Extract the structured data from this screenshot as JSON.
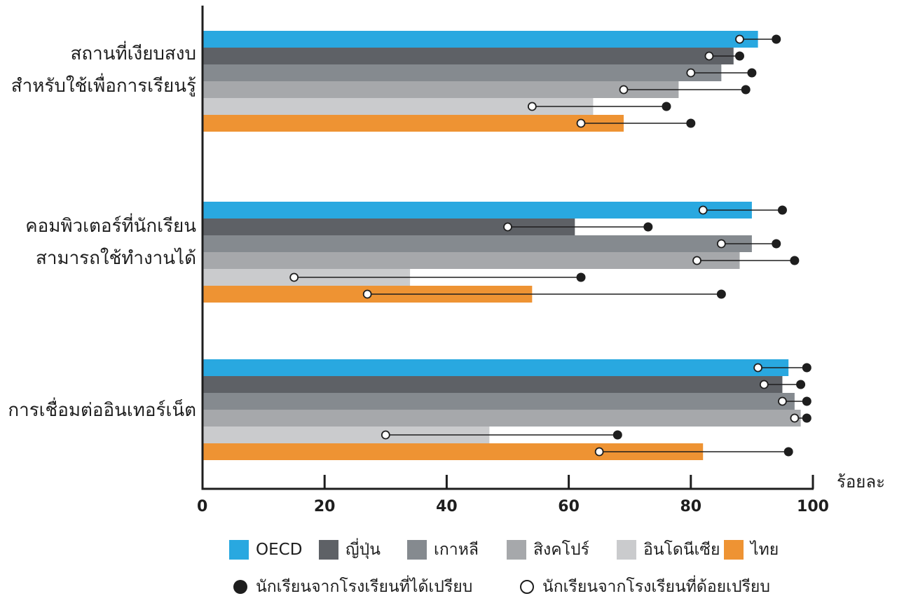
{
  "chart_data": {
    "type": "bar",
    "xunit": "ร้อยละ",
    "xlim": [
      0,
      100
    ],
    "xticks": [
      "0",
      "20",
      "40",
      "60",
      "80",
      "100"
    ],
    "categories": [
      [
        "สถานที่เงียบสงบ",
        "สำหรับใช้เพื่อการเรียนรู้"
      ],
      [
        "คอมพิวเตอร์ที่นักเรียน",
        "สามารถใช้ทำงานได้"
      ],
      [
        "การเชื่อมต่ออินเทอร์เน็ต"
      ]
    ],
    "series": [
      {
        "name": "OECD",
        "color": "#29a8e0",
        "values": [
          91,
          90,
          96
        ],
        "disadvantaged": [
          88,
          82,
          91
        ],
        "advantaged": [
          94,
          95,
          99
        ]
      },
      {
        "name": "ญี่ปุ่น",
        "color": "#5e6166",
        "values": [
          87,
          61,
          95
        ],
        "disadvantaged": [
          83,
          50,
          92
        ],
        "advantaged": [
          88,
          73,
          98
        ]
      },
      {
        "name": "เกาหลี",
        "color": "#858a8f",
        "values": [
          85,
          90,
          97
        ],
        "disadvantaged": [
          80,
          85,
          95
        ],
        "advantaged": [
          90,
          94,
          99
        ]
      },
      {
        "name": "สิงคโปร์",
        "color": "#a6a8ab",
        "values": [
          78,
          88,
          98
        ],
        "disadvantaged": [
          69,
          81,
          97
        ],
        "advantaged": [
          89,
          97,
          99
        ]
      },
      {
        "name": "อินโดนีเซีย",
        "color": "#cacbcd",
        "values": [
          64,
          34,
          47
        ],
        "disadvantaged": [
          54,
          15,
          30
        ],
        "advantaged": [
          76,
          62,
          68
        ]
      },
      {
        "name": "ไทย",
        "color": "#ee9333",
        "values": [
          69,
          54,
          82
        ],
        "disadvantaged": [
          62,
          27,
          65
        ],
        "advantaged": [
          80,
          85,
          96
        ]
      }
    ],
    "markers": {
      "advantaged_label": "นักเรียนจากโรงเรียนที่ได้เปรียบ",
      "disadvantaged_label": "นักเรียนจากโรงเรียนที่ด้อยเปรียบ"
    },
    "grid": false,
    "legend_position": "bottom"
  }
}
